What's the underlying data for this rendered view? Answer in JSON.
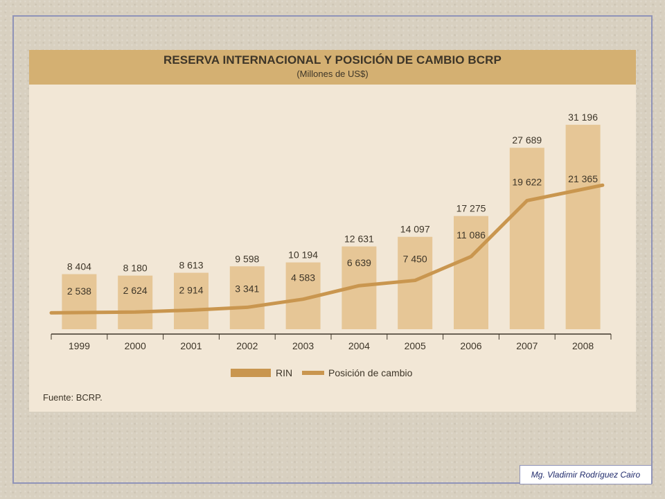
{
  "author": "Mg. Vladimir Rodríguez Cairo",
  "colors": {
    "bar": "#e6c696",
    "line": "#c9964f",
    "legend_bar": "#c9964f",
    "title_band": "#d4b072",
    "panel": "#f2e7d6",
    "text": "#3d3528"
  },
  "chart_data": {
    "type": "bar",
    "title": "RESERVA INTERNACIONAL Y POSICIÓN DE CAMBIO BCRP",
    "subtitle": "(Millones de US$)",
    "source": "Fuente: BCRP.",
    "categories": [
      "1999",
      "2000",
      "2001",
      "2002",
      "2003",
      "2004",
      "2005",
      "2006",
      "2007",
      "2008"
    ],
    "series": [
      {
        "name": "RIN",
        "kind": "bar",
        "values": [
          8404,
          8180,
          8613,
          9598,
          10194,
          12631,
          14097,
          17275,
          27689,
          31196
        ],
        "labels": [
          "8 404",
          "8 180",
          "8 613",
          "9 598",
          "10 194",
          "12 631",
          "14 097",
          "17 275",
          "27 689",
          "31 196"
        ]
      },
      {
        "name": "Posición de cambio",
        "kind": "line",
        "values": [
          2538,
          2624,
          2914,
          3341,
          4583,
          6639,
          7450,
          11086,
          19622,
          21365
        ],
        "labels": [
          "2 538",
          "2 624",
          "2 914",
          "3 341",
          "4 583",
          "6 639",
          "7 450",
          "11 086",
          "19 622",
          "21 365"
        ]
      }
    ],
    "ylim": [
      0,
      33000
    ],
    "grid": false,
    "legend_position": "bottom"
  }
}
